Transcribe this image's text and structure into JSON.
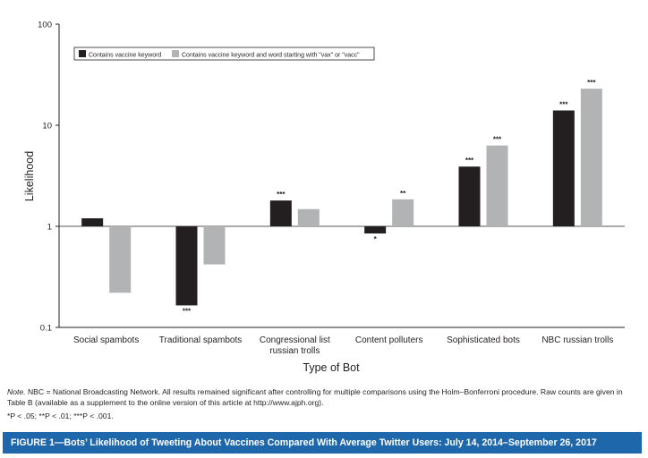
{
  "chart_data": {
    "type": "bar",
    "title": "",
    "xlabel": "Type of Bot",
    "ylabel": "Likelihood",
    "yscale": "log",
    "ylim": [
      0.1,
      100
    ],
    "baseline": 1,
    "yticks": [
      "0.1",
      "1",
      "10",
      "100"
    ],
    "ytick_values": [
      0.1,
      1,
      10,
      100
    ],
    "grid": false,
    "legend_position": "top-left",
    "categories": [
      [
        "Social spambots"
      ],
      [
        "Traditional spambots"
      ],
      [
        "Congressional list",
        "russian trolls"
      ],
      [
        "Content polluters"
      ],
      [
        "Sophisticated bots"
      ],
      [
        "NBC russian trolls"
      ]
    ],
    "series": [
      {
        "name": "Contains vaccine keyword",
        "color": "#231f20",
        "values": [
          1.2,
          0.165,
          1.8,
          0.85,
          3.9,
          14
        ],
        "significance": [
          "",
          "***",
          "***",
          "*",
          "***",
          "***"
        ]
      },
      {
        "name": "Contains vaccine keyword and word starting with \"vax\" or \"vacc\"",
        "color": "#b1b3b5",
        "values": [
          0.22,
          0.42,
          1.48,
          1.85,
          6.3,
          23
        ],
        "significance": [
          "",
          "",
          "",
          "**",
          "***",
          "***"
        ]
      }
    ]
  },
  "note": {
    "label": "Note.",
    "text": "NBC = National Broadcasting Network. All results remained significant after controlling for multiple comparisons using the Holm–Bonferroni procedure. Raw counts are given in Table B (available as a supplement to the online version of this article at http://www.ajph.org)."
  },
  "significance_key": "*P < .05; **P < .01; ***P < .001.",
  "caption": "FIGURE 1—Bots’ Likelihood of Tweeting About Vaccines Compared With Average Twitter Users: July 14, 2014–September 26, 2017"
}
